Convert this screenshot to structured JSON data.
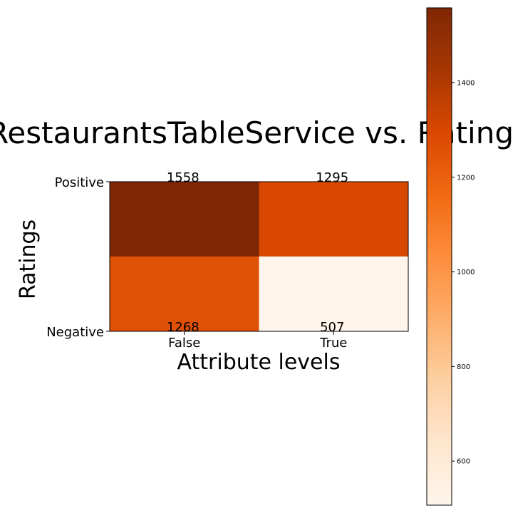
{
  "chart_data": {
    "type": "heatmap",
    "title": "RestaurantsTableService vs. Ratings",
    "xlabel": "Attribute levels",
    "ylabel": "Ratings",
    "x_categories": [
      "False",
      "True"
    ],
    "y_categories": [
      "Positive",
      "Negative"
    ],
    "cells": [
      {
        "row": "Positive",
        "col": "False",
        "value": 1558,
        "color": "#7f2704"
      },
      {
        "row": "Positive",
        "col": "True",
        "value": 1295,
        "color": "#d84801"
      },
      {
        "row": "Negative",
        "col": "False",
        "value": 1268,
        "color": "#df5106"
      },
      {
        "row": "Negative",
        "col": "True",
        "value": 507,
        "color": "#fff5eb"
      }
    ],
    "data_labels": [
      {
        "text": "1558"
      },
      {
        "text": "1295"
      },
      {
        "text": "1268"
      },
      {
        "text": "507"
      }
    ],
    "colorbar": {
      "colormap": "Oranges",
      "vmin": 507,
      "vmax": 1558,
      "ticks": [
        600,
        800,
        1000,
        1200,
        1400
      ],
      "tick_labels": [
        "600",
        "800",
        "1000",
        "1200",
        "1400"
      ]
    }
  }
}
